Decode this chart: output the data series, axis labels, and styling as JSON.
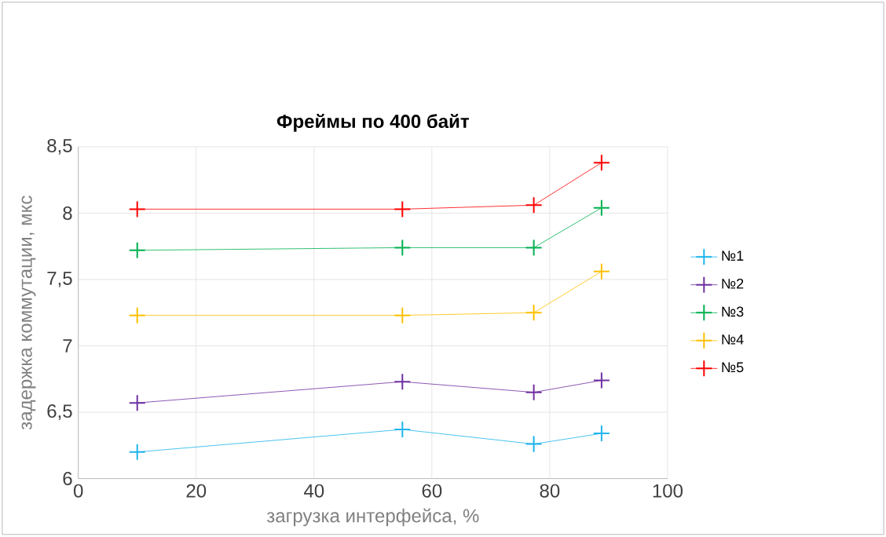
{
  "chart_data": {
    "type": "line",
    "title": "Фреймы по 400 байт",
    "xlabel": "загрузка интерфейса, %",
    "ylabel": "задержка коммутации, мкс",
    "x": [
      10,
      55,
      77.3,
      88.8
    ],
    "series": [
      {
        "name": "№1",
        "color": "#1fb4ec",
        "values": [
          6.2,
          6.37,
          6.26,
          6.34
        ]
      },
      {
        "name": "№2",
        "color": "#7030a0",
        "values": [
          6.57,
          6.73,
          6.65,
          6.74
        ]
      },
      {
        "name": "№3",
        "color": "#00b050",
        "values": [
          7.72,
          7.74,
          7.74,
          8.04
        ]
      },
      {
        "name": "№4",
        "color": "#ffc000",
        "values": [
          7.23,
          7.23,
          7.25,
          7.56
        ]
      },
      {
        "name": "№5",
        "color": "#ff0000",
        "values": [
          8.03,
          8.03,
          8.06,
          8.38
        ]
      }
    ],
    "xlim": [
      0,
      100
    ],
    "xticks": [
      0,
      20,
      40,
      60,
      80,
      100
    ],
    "ylim": [
      6,
      8.5
    ],
    "yticks": [
      6,
      {
        "value": 6.5,
        "label": "6,5"
      },
      7,
      {
        "value": 7.5,
        "label": "7,5"
      },
      8,
      {
        "value": 8.5,
        "label": "8,5"
      }
    ],
    "grid": true,
    "legend": "right",
    "marker": "cross",
    "line_style": "solid"
  }
}
